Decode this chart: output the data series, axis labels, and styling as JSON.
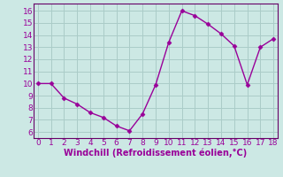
{
  "x": [
    0,
    1,
    2,
    3,
    4,
    5,
    6,
    7,
    8,
    9,
    10,
    11,
    12,
    13,
    14,
    15,
    16,
    17,
    18
  ],
  "y": [
    10,
    10,
    8.8,
    8.3,
    7.6,
    7.2,
    6.5,
    6.1,
    7.5,
    9.9,
    13.4,
    16.0,
    15.6,
    14.9,
    14.1,
    13.1,
    9.9,
    13.0,
    13.7
  ],
  "line_color": "#990099",
  "marker": "D",
  "marker_size": 2.5,
  "bg_color": "#cce8e4",
  "grid_color": "#aaccc8",
  "xlabel": "Windchill (Refroidissement éolien,°C)",
  "xlim": [
    -0.3,
    18.3
  ],
  "ylim": [
    5.5,
    16.6
  ],
  "xticks": [
    0,
    1,
    2,
    3,
    4,
    5,
    6,
    7,
    8,
    9,
    10,
    11,
    12,
    13,
    14,
    15,
    16,
    17,
    18
  ],
  "yticks": [
    6,
    7,
    8,
    9,
    10,
    11,
    12,
    13,
    14,
    15,
    16
  ],
  "xlabel_color": "#990099",
  "tick_color": "#990099",
  "xlabel_fontsize": 7.0,
  "tick_fontsize": 6.5,
  "spine_color": "#660066",
  "linewidth": 1.0
}
